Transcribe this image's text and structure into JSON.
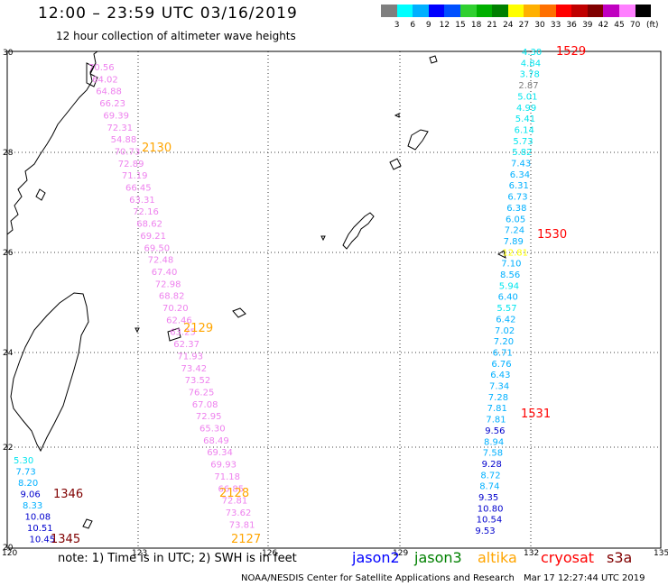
{
  "title": "12:00 – 23:59 UTC 03/16/2019",
  "subtitle": "12 hour collection of altimeter wave heights",
  "colorbar": {
    "labels": [
      "3",
      "6",
      "9",
      "12",
      "15",
      "18",
      "21",
      "24",
      "27",
      "30",
      "33",
      "36",
      "39",
      "42",
      "45",
      "70"
    ],
    "unit": "(ft)",
    "colors": [
      "#7f7f7f",
      "#00ffff",
      "#00b0ff",
      "#0000ff",
      "#0050ff",
      "#30d030",
      "#00b000",
      "#008000",
      "#ffff00",
      "#ffb000",
      "#ff7000",
      "#ff0000",
      "#c00000",
      "#800000",
      "#c000c0",
      "#ff80ff",
      "#000000"
    ]
  },
  "axes": {
    "lon_labels": [
      "120",
      "123",
      "126",
      "129",
      "132",
      "135"
    ],
    "lat_labels": [
      "30",
      "28",
      "26",
      "24",
      "22",
      "20"
    ]
  },
  "passes": {
    "p2130": {
      "label": "2130",
      "color": "#ee82ee",
      "label_color": "#ffa500",
      "values": [
        "70.56",
        "64.02",
        "64.88",
        "66.23",
        "69.39",
        "72.31",
        "54.88",
        "70.73",
        "72.89",
        "71.19",
        "66.45",
        "63.31",
        "72.16",
        "68.62",
        "69.21",
        "69.50",
        "72.48",
        "67.40",
        "72.98",
        "68.82",
        "70.20",
        "62.46",
        "63.25",
        "62.37",
        "71.93",
        "73.42",
        "73.52",
        "76.25",
        "67.08",
        "72.95",
        "65.30",
        "68.49",
        "69.34",
        "69.93",
        "71.18",
        "66.85",
        "72.81",
        "73.62",
        "73.81"
      ]
    },
    "p2129": {
      "label": "2129",
      "label_color": "#ffa500"
    },
    "p2128": {
      "label": "2128",
      "label_color": "#ffa500"
    },
    "p2127": {
      "label": "2127",
      "label_color": "#ffa500"
    },
    "p1529": {
      "label": "1529",
      "label_color": "#ff0000"
    },
    "p1530": {
      "label": "1530",
      "label_color": "#ff0000"
    },
    "p1531": {
      "label": "1531",
      "label_color": "#ff0000"
    },
    "p1346": {
      "label": "1346",
      "label_color": "#800000"
    },
    "p1345": {
      "label": "1345",
      "label_color": "#800000"
    },
    "east": [
      {
        "v": "4.30",
        "c": "#00e5ee"
      },
      {
        "v": "4.84",
        "c": "#00e5ee"
      },
      {
        "v": "3.78",
        "c": "#00e5ee"
      },
      {
        "v": "2.87",
        "c": "#808080"
      },
      {
        "v": "5.01",
        "c": "#00e5ee"
      },
      {
        "v": "4.99",
        "c": "#00e5ee"
      },
      {
        "v": "5.41",
        "c": "#00e5ee"
      },
      {
        "v": "6.14",
        "c": "#00e5ee"
      },
      {
        "v": "5.73",
        "c": "#00e5ee"
      },
      {
        "v": "5.82",
        "c": "#00e5ee"
      },
      {
        "v": "7.43",
        "c": "#00b0ff"
      },
      {
        "v": "6.34",
        "c": "#00b0ff"
      },
      {
        "v": "6.31",
        "c": "#00b0ff"
      },
      {
        "v": "6.73",
        "c": "#00b0ff"
      },
      {
        "v": "6.38",
        "c": "#00b0ff"
      },
      {
        "v": "6.05",
        "c": "#00b0ff"
      },
      {
        "v": "7.24",
        "c": "#00b0ff"
      },
      {
        "v": "7.89",
        "c": "#00b0ff"
      },
      {
        "v": "12.81",
        "c": "#ffff00"
      },
      {
        "v": "7.10",
        "c": "#00b0ff"
      },
      {
        "v": "8.56",
        "c": "#00b0ff"
      },
      {
        "v": "5.94",
        "c": "#00e5ee"
      },
      {
        "v": "6.40",
        "c": "#00b0ff"
      },
      {
        "v": "5.57",
        "c": "#00e5ee"
      },
      {
        "v": "6.42",
        "c": "#00b0ff"
      },
      {
        "v": "7.02",
        "c": "#00b0ff"
      },
      {
        "v": "7.20",
        "c": "#00b0ff"
      },
      {
        "v": "6.71",
        "c": "#00b0ff"
      },
      {
        "v": "6.76",
        "c": "#00b0ff"
      },
      {
        "v": "6.43",
        "c": "#00b0ff"
      },
      {
        "v": "7.34",
        "c": "#00b0ff"
      },
      {
        "v": "7.28",
        "c": "#00b0ff"
      },
      {
        "v": "7.81",
        "c": "#00b0ff"
      },
      {
        "v": "7.81",
        "c": "#00b0ff"
      },
      {
        "v": "9.56",
        "c": "#0000cd"
      },
      {
        "v": "8.94",
        "c": "#00b0ff"
      },
      {
        "v": "7.58",
        "c": "#00b0ff"
      },
      {
        "v": "9.28",
        "c": "#0000cd"
      },
      {
        "v": "8.72",
        "c": "#00b0ff"
      },
      {
        "v": "8.74",
        "c": "#00b0ff"
      },
      {
        "v": "9.35",
        "c": "#0000cd"
      },
      {
        "v": "10.80",
        "c": "#0000cd"
      },
      {
        "v": "10.54",
        "c": "#0000cd"
      },
      {
        "v": "9.53",
        "c": "#0000cd"
      }
    ],
    "southwest": [
      {
        "v": "5.30",
        "c": "#00e5ee"
      },
      {
        "v": "7.73",
        "c": "#00b0ff"
      },
      {
        "v": "8.20",
        "c": "#00b0ff"
      },
      {
        "v": "9.06",
        "c": "#0000cd"
      },
      {
        "v": "8.33",
        "c": "#00b0ff"
      },
      {
        "v": "10.08",
        "c": "#0000cd"
      },
      {
        "v": "10.51",
        "c": "#0000cd"
      },
      {
        "v": "10.45",
        "c": "#0000cd"
      }
    ]
  },
  "note": "note:  1) Time is in UTC;  2) SWH is in feet",
  "satellites": [
    {
      "name": "jason2",
      "color": "#0000ff"
    },
    {
      "name": "jason3",
      "color": "#008000"
    },
    {
      "name": "altika",
      "color": "#ffa500"
    },
    {
      "name": "cryosat",
      "color": "#ff0000"
    },
    {
      "name": "s3a",
      "color": "#800000"
    }
  ],
  "credit": "NOAA/NESDIS Center for Satellite Applications and Research",
  "timestamp": "Mar 17 12:27:44 UTC 2019"
}
